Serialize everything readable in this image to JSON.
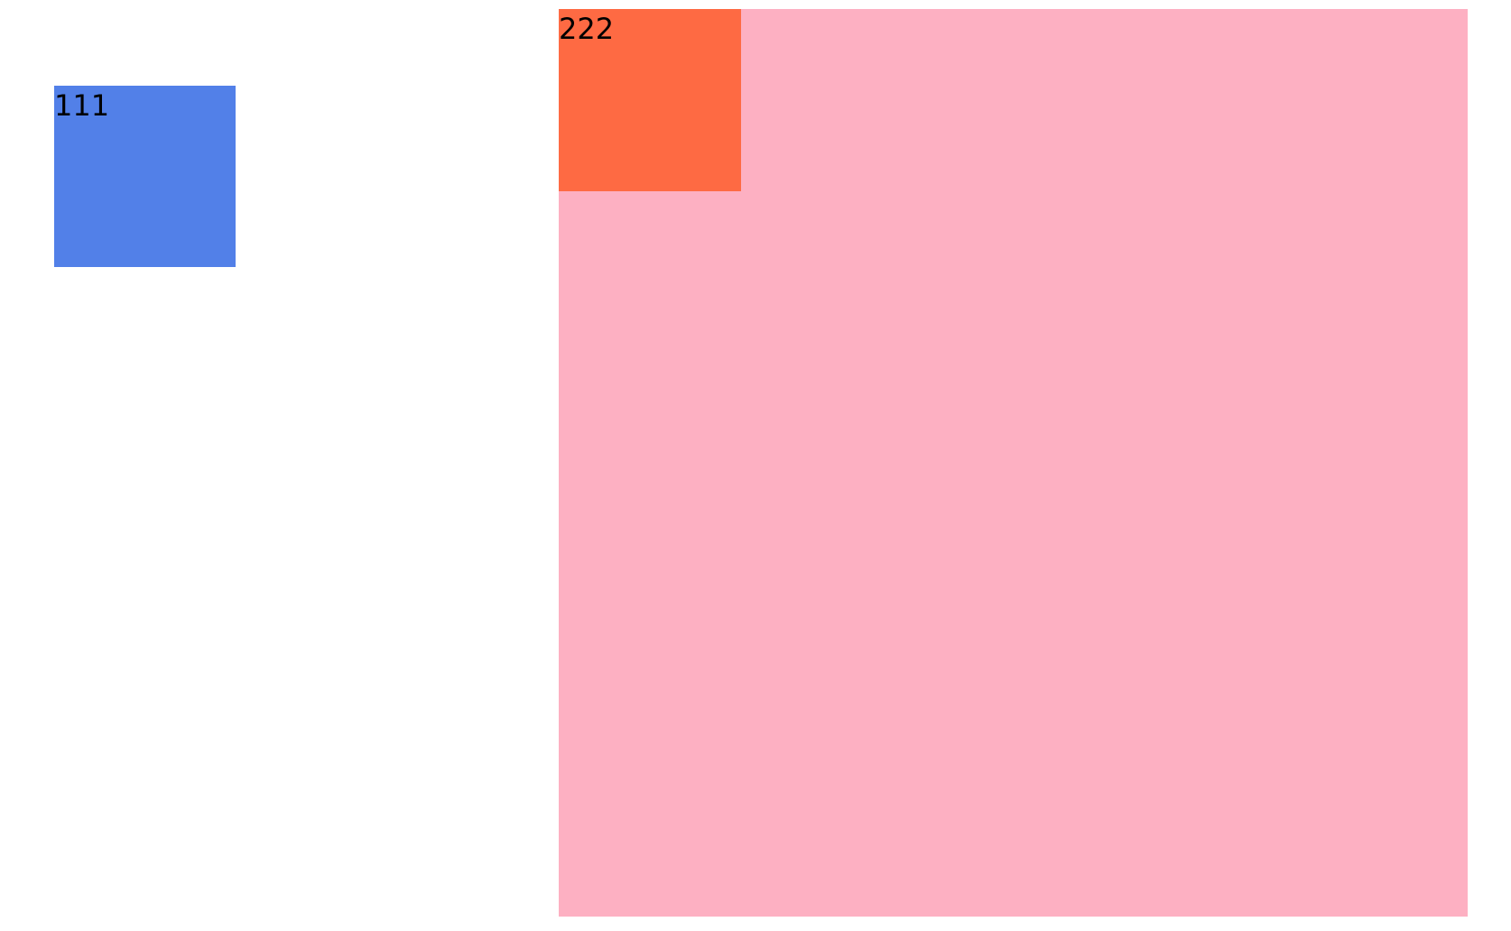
{
  "colors": {
    "background": "#ffffff",
    "blue_box": "#5280e8",
    "pink_box": "#fdb0c2",
    "orange_box": "#fe6a43",
    "text": "#000000"
  },
  "blue_box": {
    "label": "111"
  },
  "pink_box": {
    "orange_box": {
      "label": "222"
    }
  }
}
